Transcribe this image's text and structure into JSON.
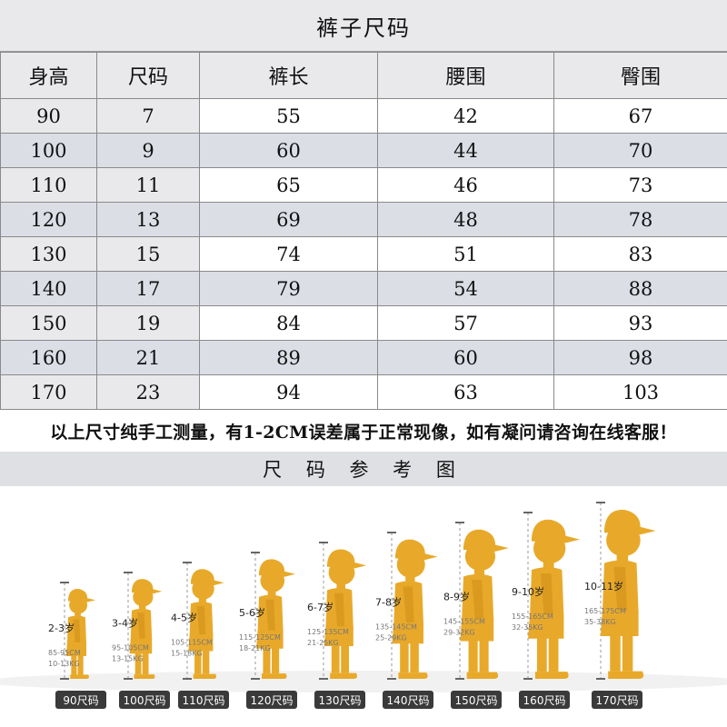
{
  "title": "裤子尺码",
  "columns": [
    "身高",
    "尺码",
    "裤长",
    "腰围",
    "臀围"
  ],
  "rows": [
    [
      "90",
      "7",
      "55",
      "42",
      "67"
    ],
    [
      "100",
      "9",
      "60",
      "44",
      "70"
    ],
    [
      "110",
      "11",
      "65",
      "46",
      "73"
    ],
    [
      "120",
      "13",
      "69",
      "48",
      "78"
    ],
    [
      "130",
      "15",
      "74",
      "51",
      "83"
    ],
    [
      "140",
      "17",
      "79",
      "54",
      "88"
    ],
    [
      "150",
      "19",
      "84",
      "57",
      "93"
    ],
    [
      "160",
      "21",
      "89",
      "60",
      "98"
    ],
    [
      "170",
      "23",
      "94",
      "63",
      "103"
    ]
  ],
  "note": "以上尺寸纯手工测量，有1-2CM误差属于正常现像，如有凝问请咨询在线客服！",
  "reference_title": "尺 码 参 考 图",
  "silhouette_color": "#e8a92a",
  "figures": [
    {
      "age": "2-3岁",
      "height": "85-95CM",
      "weight": "10-13KG",
      "size": "90尺码"
    },
    {
      "age": "3-4岁",
      "height": "95-105CM",
      "weight": "13-15KG",
      "size": "100尺码"
    },
    {
      "age": "4-5岁",
      "height": "105-115CM",
      "weight": "15-18KG",
      "size": "110尺码"
    },
    {
      "age": "5-6岁",
      "height": "115-125CM",
      "weight": "18-21KG",
      "size": "120尺码"
    },
    {
      "age": "6-7岁",
      "height": "125-135CM",
      "weight": "21-25KG",
      "size": "130尺码"
    },
    {
      "age": "7-8岁",
      "height": "135-145CM",
      "weight": "25-29KG",
      "size": "140尺码"
    },
    {
      "age": "8-9岁",
      "height": "145-155CM",
      "weight": "29-32KG",
      "size": "150尺码"
    },
    {
      "age": "9-10岁",
      "height": "155-165CM",
      "weight": "32-35KG",
      "size": "160尺码"
    },
    {
      "age": "10-11岁",
      "height": "165-175CM",
      "weight": "35-38KG",
      "size": "170尺码"
    }
  ]
}
